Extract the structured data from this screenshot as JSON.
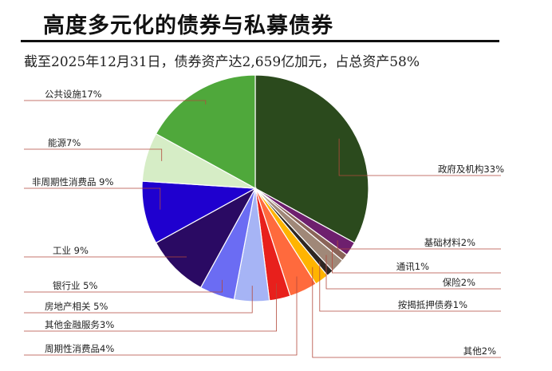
{
  "header": {
    "title": "高度多元化的债券与私募债券",
    "subtitle": "截至2025年12月31日，债券资产达2,659亿加元，占总资产58%"
  },
  "chart_data": {
    "type": "pie",
    "title": "高度多元化的债券与私募债券",
    "subtitle": "截至2025年12月31日，债券资产达2,659亿加元，占总资产58%",
    "start_angle_deg": 0,
    "direction": "clockwise",
    "slices": [
      {
        "label": "政府及机构33%",
        "value": 33,
        "color": "#2b4a1d"
      },
      {
        "label": "基础材料2%",
        "value": 2,
        "color": "#6e1f6e"
      },
      {
        "label": "通讯1%",
        "value": 1,
        "color": "#8a6458"
      },
      {
        "label": "保险2%",
        "value": 2,
        "color": "#a08878"
      },
      {
        "label": "按揭抵押债券1%",
        "value": 1,
        "color": "#2e2723"
      },
      {
        "label": "其他2%",
        "value": 2,
        "color": "#ffb400"
      },
      {
        "label": "周期性消费品4%",
        "value": 4,
        "color": "#ff6a3d"
      },
      {
        "label": "其他金融服务3%",
        "value": 3,
        "color": "#e8201c"
      },
      {
        "label": "房地产相关 5%",
        "value": 5,
        "color": "#a6b4f5"
      },
      {
        "label": "银行业 5%",
        "value": 5,
        "color": "#6b6cf3"
      },
      {
        "label": "工业 9%",
        "value": 9,
        "color": "#2a0a63"
      },
      {
        "label": "非周期性消费品 9%",
        "value": 9,
        "color": "#1f00cf"
      },
      {
        "label": "能源7%",
        "value": 7,
        "color": "#d6edc6"
      },
      {
        "label": "公共设施17%",
        "value": 17,
        "color": "#4fa83b"
      }
    ]
  }
}
